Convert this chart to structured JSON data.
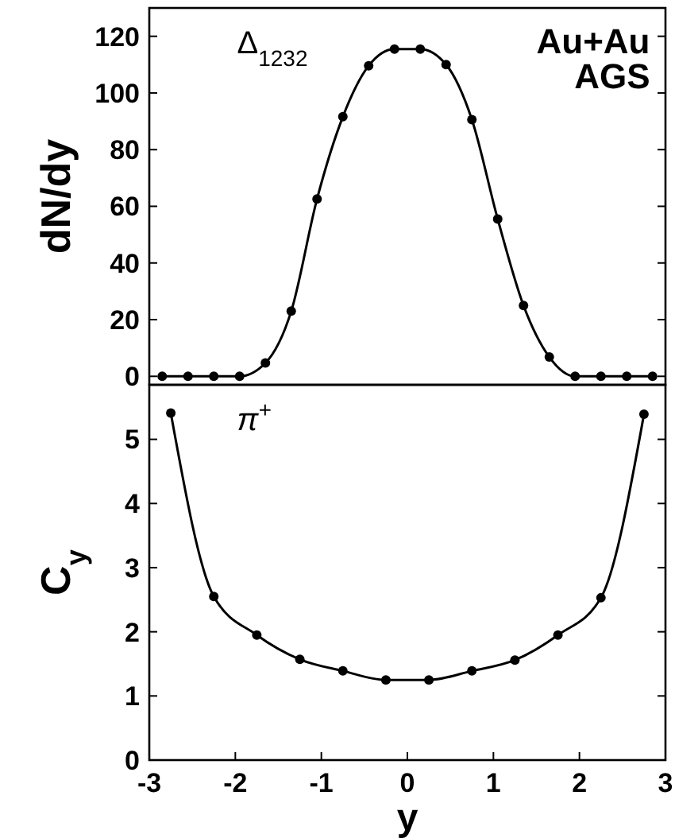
{
  "chart_data": [
    {
      "type": "line",
      "ylabel": "dN/dy",
      "annotations": [
        "Δ$_{1232}$",
        "Au+Au\nAGS"
      ],
      "xlim": [
        -3,
        3
      ],
      "ylim": [
        -3,
        130
      ],
      "yticks": [
        0,
        20,
        40,
        60,
        80,
        100,
        120
      ],
      "tick_labels": "y",
      "marker": "circle",
      "line_style": "solid",
      "series": [
        {
          "color": "#000000",
          "x": [
            -2.85,
            -2.55,
            -2.25,
            -1.95,
            -1.65,
            -1.35,
            -1.05,
            -0.75,
            -0.45,
            -0.15,
            0.15,
            0.45,
            0.75,
            1.05,
            1.35,
            1.65,
            1.95,
            2.25,
            2.55,
            2.85
          ],
          "values": [
            0,
            0,
            0,
            0,
            4.7,
            23,
            62.6,
            91.6,
            109.6,
            115.5,
            115.5,
            110,
            90.6,
            55.5,
            25,
            6.8,
            0,
            0,
            0,
            0
          ]
        }
      ]
    },
    {
      "type": "line",
      "ylabel": "C$_{y}$",
      "xlabel": "y",
      "annotations": [
        "π$^{+}$"
      ],
      "xlim": [
        -3,
        3
      ],
      "xticks": [
        -3,
        -2,
        -1,
        0,
        1,
        2,
        3
      ],
      "ylim": [
        0,
        5.85
      ],
      "yticks": [
        0,
        1,
        2,
        3,
        4,
        5
      ],
      "marker": "circle",
      "line_style": "solid",
      "series": [
        {
          "color": "#000000",
          "x": [
            -2.75,
            -2.25,
            -1.75,
            -1.25,
            -0.75,
            -0.25,
            0.25,
            0.75,
            1.25,
            1.75,
            2.25,
            2.75
          ],
          "values": [
            5.41,
            2.55,
            1.95,
            1.57,
            1.39,
            1.25,
            1.25,
            1.39,
            1.56,
            1.95,
            2.53,
            5.39
          ]
        }
      ]
    }
  ]
}
